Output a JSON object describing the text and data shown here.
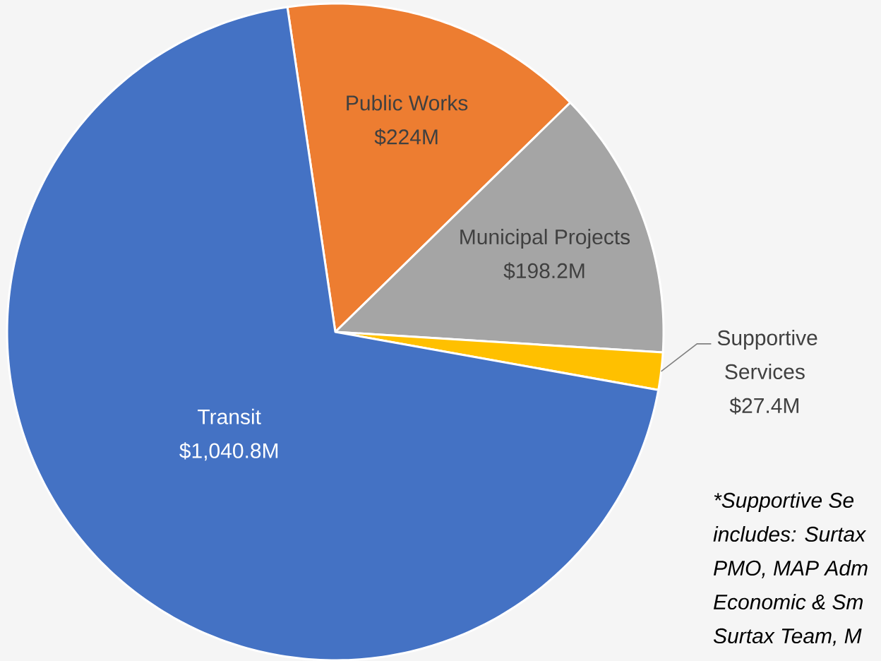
{
  "chart_data": {
    "type": "pie",
    "categories": [
      "Public Works",
      "Municipal Projects",
      "Supportive Services",
      "Transit"
    ],
    "values": [
      224,
      198.2,
      27.4,
      1040.8
    ],
    "value_labels": [
      "$224M",
      "$198.2M",
      "$27.4M",
      "$1,040.8M"
    ],
    "colors": [
      "#ed7d31",
      "#a5a5a5",
      "#ffc000",
      "#4472c4"
    ],
    "annotations": [
      "*Supportive Se",
      "includes: Surtax",
      "PMO, MAP Adm",
      "Economic & Sm",
      "Surtax Team, M"
    ]
  }
}
